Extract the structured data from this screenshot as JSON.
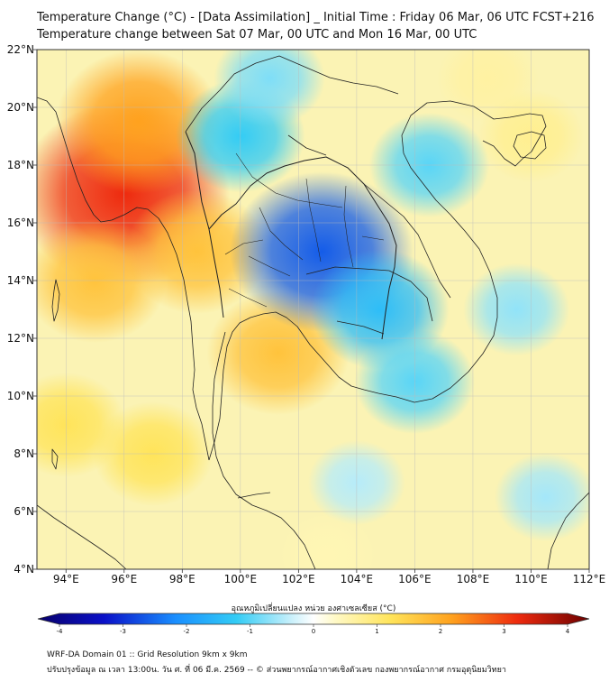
{
  "title": {
    "line1": "Temperature Change (°C) - [Data Assimilation] _ Initial Time : Friday 06 Mar, 06 UTC FCST+216",
    "line2": "Temperature change between Sat 07 Mar, 00 UTC and Mon 16 Mar, 00 UTC"
  },
  "map": {
    "lon_range": [
      93,
      112
    ],
    "lat_range": [
      4,
      22
    ],
    "x_ticks": [
      94,
      96,
      98,
      100,
      102,
      104,
      106,
      108,
      110,
      112
    ],
    "x_tick_labels": [
      "94°E",
      "96°E",
      "98°E",
      "100°E",
      "102°E",
      "104°E",
      "106°E",
      "108°E",
      "110°E",
      "112°E"
    ],
    "y_ticks": [
      4,
      6,
      8,
      10,
      12,
      14,
      16,
      18,
      20,
      22
    ],
    "y_tick_labels": [
      "4°N",
      "6°N",
      "8°N",
      "10°N",
      "12°N",
      "14°N",
      "16°N",
      "18°N",
      "20°N",
      "22°N"
    ],
    "anomalies": [
      {
        "lon": 96.0,
        "lat": 17.0,
        "value": 3.0
      },
      {
        "lon": 96.5,
        "lat": 19.5,
        "value": 2.0
      },
      {
        "lon": 95.0,
        "lat": 14.0,
        "value": 1.5
      },
      {
        "lon": 98.5,
        "lat": 15.0,
        "value": 1.5
      },
      {
        "lon": 94.0,
        "lat": 9.0,
        "value": 1.0
      },
      {
        "lon": 97.0,
        "lat": 8.0,
        "value": 1.0
      },
      {
        "lon": 101.3,
        "lat": 11.5,
        "value": 1.5
      },
      {
        "lon": 102.8,
        "lat": 15.0,
        "value": -2.4
      },
      {
        "lon": 100.0,
        "lat": 19.0,
        "value": -1.2
      },
      {
        "lon": 104.8,
        "lat": 13.0,
        "value": -1.4
      },
      {
        "lon": 106.5,
        "lat": 18.0,
        "value": -1.0
      },
      {
        "lon": 106.0,
        "lat": 10.5,
        "value": -1.0
      },
      {
        "lon": 101.0,
        "lat": 21.0,
        "value": -0.8
      },
      {
        "lon": 109.5,
        "lat": 13.0,
        "value": -0.7
      },
      {
        "lon": 110.5,
        "lat": 6.5,
        "value": -0.6
      },
      {
        "lon": 104.0,
        "lat": 7.0,
        "value": -0.5
      },
      {
        "lon": 108.5,
        "lat": 21.0,
        "value": 0.6
      },
      {
        "lon": 110.0,
        "lat": 19.0,
        "value": 0.7
      },
      {
        "lon": 103.0,
        "lat": 4.5,
        "value": 0.5
      }
    ]
  },
  "colorbar": {
    "title": "อุณหภูมิเปลี่ยนแปลง หน่วย องศาเซลเซียส (°C)",
    "ticks": [
      -4,
      -3,
      -2,
      -1,
      0,
      1,
      2,
      3,
      4
    ],
    "tick_labels": [
      "-4",
      "-3",
      "-2",
      "-1",
      "0",
      "1",
      "2",
      "3",
      "4"
    ],
    "range": [
      -4,
      4
    ]
  },
  "footer": {
    "line1": "WRF-DA Domain 01 :: Grid Resolution 9km x 9km",
    "line2": "ปรับปรุงข้อมูล ณ เวลา 13:00น. วัน ศ. ที่ 06 มี.ค. 2569 -- © ส่วนพยากรณ์อากาศเชิงตัวเลข กองพยากรณ์อากาศ กรมอุตุนิยมวิทยา"
  }
}
